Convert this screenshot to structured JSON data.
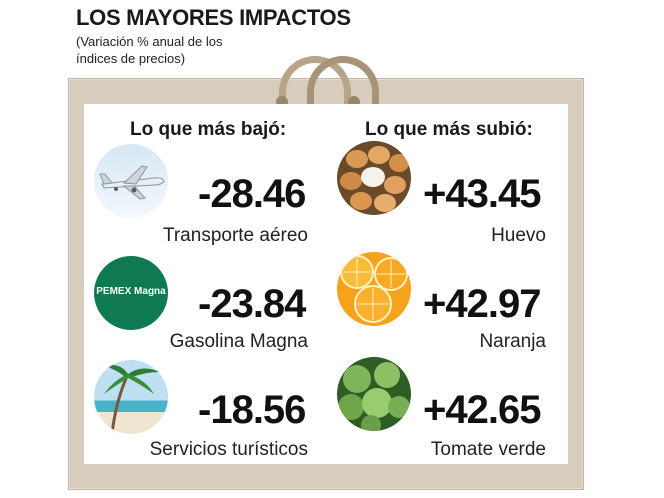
{
  "header": {
    "title": "LOS MAYORES IMPACTOS",
    "subtitle_line1": "(Variación % anual de los",
    "subtitle_line2": "índices de precios)"
  },
  "columns": {
    "down_heading": "Lo que más bajó:",
    "up_heading": "Lo que más subió:"
  },
  "down_items": [
    {
      "value": "-28.46",
      "label": "Transporte aéreo",
      "icon": "airplane-icon"
    },
    {
      "value": "-23.84",
      "label": "Gasolina Magna",
      "icon": "pemex-magna-logo",
      "logo_text": "PEMEX Magna"
    },
    {
      "value": "-18.56",
      "label": "Servicios turísticos",
      "icon": "beach-icon"
    }
  ],
  "up_items": [
    {
      "value": "+43.45",
      "label": "Huevo",
      "icon": "eggs-icon"
    },
    {
      "value": "+42.97",
      "label": "Naranja",
      "icon": "oranges-icon"
    },
    {
      "value": "+42.65",
      "label": "Tomate verde",
      "icon": "green-tomato-icon"
    }
  ],
  "colors": {
    "bag": "#d8cdbd",
    "handle": "#b7a48b",
    "pemex_green": "#0f7a52",
    "text": "#111111"
  }
}
